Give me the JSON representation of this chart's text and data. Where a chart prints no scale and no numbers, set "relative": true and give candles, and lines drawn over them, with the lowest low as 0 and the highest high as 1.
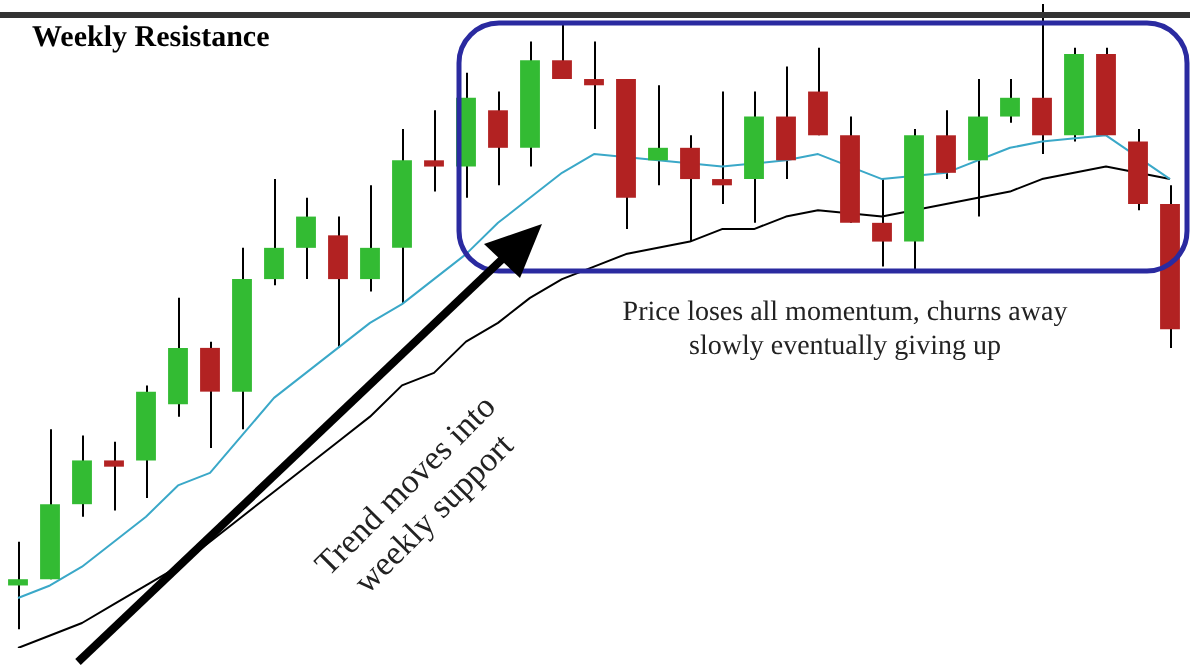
{
  "chart_data": {
    "type": "candlestick",
    "title": "Weekly Resistance",
    "relative": true,
    "legend": false,
    "tick_labels": false,
    "categories": [
      null,
      null,
      null,
      null,
      null,
      null,
      null,
      null,
      null,
      null,
      null,
      null,
      null,
      null,
      null,
      null,
      null,
      null,
      null,
      null,
      null,
      null,
      null,
      null,
      null,
      null,
      null,
      null,
      null,
      null,
      null,
      null,
      null,
      null,
      null,
      null,
      null
    ],
    "ohlc": [
      [
        0.07,
        0.14,
        0,
        0.08
      ],
      [
        0.08,
        0.32,
        0.08,
        0.2
      ],
      [
        0.2,
        0.31,
        0.18,
        0.27
      ],
      [
        0.27,
        0.3,
        0.19,
        0.26
      ],
      [
        0.27,
        0.39,
        0.21,
        0.38
      ],
      [
        0.36,
        0.53,
        0.34,
        0.45
      ],
      [
        0.45,
        0.46,
        0.29,
        0.38
      ],
      [
        0.38,
        0.61,
        0.32,
        0.56
      ],
      [
        0.56,
        0.72,
        0.55,
        0.61
      ],
      [
        0.61,
        0.69,
        0.56,
        0.66
      ],
      [
        0.63,
        0.66,
        0.45,
        0.56
      ],
      [
        0.56,
        0.71,
        0.54,
        0.61
      ],
      [
        0.61,
        0.8,
        0.52,
        0.75
      ],
      [
        0.75,
        0.83,
        0.7,
        0.74
      ],
      [
        0.74,
        0.89,
        0.69,
        0.85
      ],
      [
        0.83,
        0.86,
        0.71,
        0.77
      ],
      [
        0.77,
        0.94,
        0.74,
        0.91
      ],
      [
        0.91,
        0.97,
        0.88,
        0.88
      ],
      [
        0.88,
        0.94,
        0.8,
        0.87
      ],
      [
        0.88,
        0.88,
        0.64,
        0.69
      ],
      [
        0.75,
        0.87,
        0.71,
        0.77
      ],
      [
        0.77,
        0.79,
        0.62,
        0.72
      ],
      [
        0.72,
        0.86,
        0.68,
        0.71
      ],
      [
        0.72,
        0.86,
        0.65,
        0.82
      ],
      [
        0.82,
        0.9,
        0.72,
        0.75
      ],
      [
        0.86,
        0.93,
        0.79,
        0.79
      ],
      [
        0.79,
        0.82,
        0.65,
        0.65
      ],
      [
        0.65,
        0.72,
        0.58,
        0.62
      ],
      [
        0.62,
        0.8,
        0.57,
        0.79
      ],
      [
        0.79,
        0.83,
        0.72,
        0.73
      ],
      [
        0.75,
        0.88,
        0.66,
        0.82
      ],
      [
        0.82,
        0.88,
        0.81,
        0.85
      ],
      [
        0.85,
        1,
        0.76,
        0.79
      ],
      [
        0.79,
        0.93,
        0.78,
        0.92
      ],
      [
        0.92,
        0.93,
        0.79,
        0.79
      ],
      [
        0.78,
        0.8,
        0.67,
        0.68
      ],
      [
        0.68,
        0.71,
        0.45,
        0.48
      ]
    ],
    "colors": [
      "#33bb33",
      "#33bb33",
      "#33bb33",
      "#b22222",
      "#33bb33",
      "#33bb33",
      "#b22222",
      "#33bb33",
      "#33bb33",
      "#33bb33",
      "#b22222",
      "#33bb33",
      "#33bb33",
      "#b22222",
      "#33bb33",
      "#b22222",
      "#33bb33",
      "#b22222",
      "#b22222",
      "#b22222",
      "#33bb33",
      "#b22222",
      "#b22222",
      "#33bb33",
      "#b22222",
      "#b22222",
      "#b22222",
      "#b22222",
      "#33bb33",
      "#b22222",
      "#33bb33",
      "#33bb33",
      "#b22222",
      "#33bb33",
      "#b22222",
      "#b22222",
      "#b22222"
    ],
    "series": [
      {
        "type": "line",
        "color": "#3aa8c8",
        "values": [
          0.05,
          0.07,
          0.1,
          0.14,
          0.18,
          0.23,
          0.25,
          0.31,
          0.37,
          0.41,
          0.45,
          0.49,
          0.52,
          0.56,
          0.6,
          0.65,
          0.69,
          0.73,
          0.76,
          null,
          0.75,
          null,
          0.74,
          null,
          0.75,
          0.76,
          null,
          0.72,
          null,
          0.73,
          null,
          0.77,
          0.78,
          null,
          0.79,
          null,
          0.72
        ]
      },
      {
        "type": "line",
        "color": "#000000",
        "values": [
          -0.03,
          -0.01,
          0.01,
          0.04,
          0.07,
          0.1,
          0.14,
          0.18,
          0.22,
          0.26,
          0.3,
          0.34,
          0.39,
          0.41,
          0.46,
          0.49,
          0.53,
          0.56,
          0.58,
          0.6,
          0.61,
          0.62,
          0.64,
          0.64,
          0.66,
          0.67,
          null,
          0.66,
          null,
          0.68,
          0.69,
          0.7,
          0.72,
          0.73,
          0.74,
          null,
          0.72
        ]
      }
    ],
    "annotations": [
      "Price loses all momentum, churns away slowly eventually giving up",
      "Trend moves into weekly support"
    ]
  }
}
